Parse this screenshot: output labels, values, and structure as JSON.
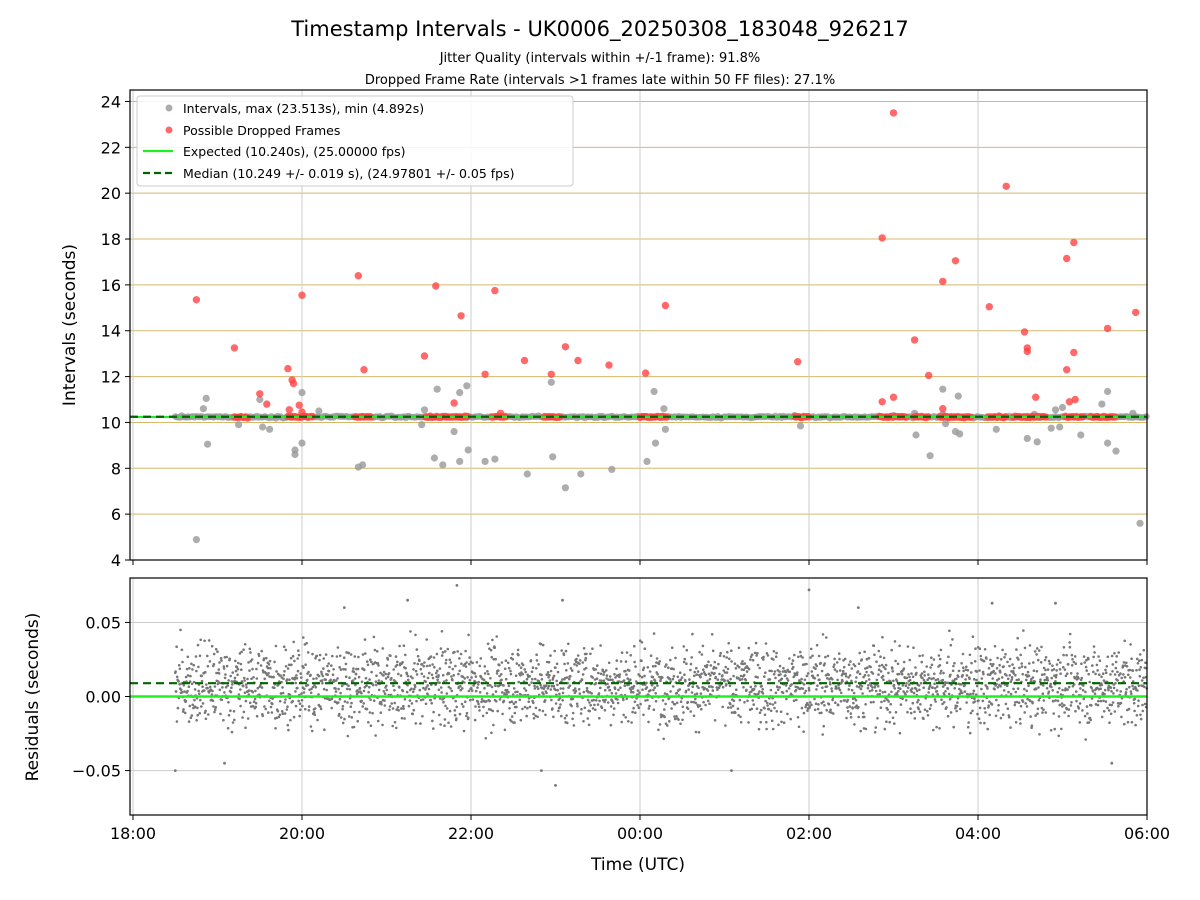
{
  "chart_data": {
    "type": "scatter",
    "title": "Timestamp Intervals - UK0006_20250308_183048_926217",
    "subtitle_1": "Jitter Quality (intervals within +/-1 frame): 91.8%",
    "subtitle_2": "Dropped Frame Rate (intervals >1 frames late within 50 FF files): 27.1%",
    "xlabel": "Time (UTC)",
    "x_ticks": [
      "18:00",
      "20:00",
      "22:00",
      "00:00",
      "02:00",
      "04:00",
      "06:00"
    ],
    "x_range_hours_utc": [
      "2025-03-08 18:00",
      "2025-03-09 06:00"
    ],
    "top_panel": {
      "ylabel": "Intervals (seconds)",
      "ylim": [
        4,
        24.5
      ],
      "y_ticks": [
        "4",
        "6",
        "8",
        "10",
        "12",
        "14",
        "16",
        "18",
        "20",
        "22",
        "24"
      ],
      "y_tick_values": [
        4,
        6,
        8,
        10,
        12,
        14,
        16,
        18,
        20,
        22,
        24
      ],
      "legend_position": "top-left",
      "legend": [
        "Intervals, max (23.513s), min (4.892s)",
        "Possible Dropped Frames",
        "Expected (10.240s), (25.00000 fps)",
        "Median (10.249 +/- 0.019 s), (24.97801 +/- 0.05 fps)"
      ],
      "expected_line": 10.24,
      "median_line": 10.249,
      "series": [
        {
          "name": "Intervals",
          "color": "#999999",
          "points": [
            [
              "2025-03-08 18:45",
              4.89
            ],
            [
              "2025-03-08 18:50",
              10.6
            ],
            [
              "2025-03-08 18:52",
              11.05
            ],
            [
              "2025-03-08 18:53",
              9.05
            ],
            [
              "2025-03-08 19:15",
              9.9
            ],
            [
              "2025-03-08 19:30",
              11.0
            ],
            [
              "2025-03-08 19:32",
              9.8
            ],
            [
              "2025-03-08 19:37",
              9.7
            ],
            [
              "2025-03-08 19:55",
              8.6
            ],
            [
              "2025-03-08 19:55",
              8.8
            ],
            [
              "2025-03-08 20:00",
              11.3
            ],
            [
              "2025-03-08 20:00",
              9.1
            ],
            [
              "2025-03-08 20:12",
              10.5
            ],
            [
              "2025-03-08 20:40",
              8.05
            ],
            [
              "2025-03-08 20:43",
              8.15
            ],
            [
              "2025-03-08 21:25",
              9.9
            ],
            [
              "2025-03-08 21:27",
              10.55
            ],
            [
              "2025-03-08 21:34",
              8.45
            ],
            [
              "2025-03-08 21:36",
              11.45
            ],
            [
              "2025-03-08 21:40",
              8.15
            ],
            [
              "2025-03-08 21:48",
              9.6
            ],
            [
              "2025-03-08 21:52",
              8.3
            ],
            [
              "2025-03-08 21:52",
              11.3
            ],
            [
              "2025-03-08 21:57",
              11.6
            ],
            [
              "2025-03-08 21:58",
              8.8
            ],
            [
              "2025-03-08 22:10",
              8.3
            ],
            [
              "2025-03-08 22:17",
              8.4
            ],
            [
              "2025-03-08 22:40",
              7.75
            ],
            [
              "2025-03-08 22:57",
              11.75
            ],
            [
              "2025-03-08 22:58",
              8.5
            ],
            [
              "2025-03-08 23:07",
              7.15
            ],
            [
              "2025-03-08 23:18",
              7.75
            ],
            [
              "2025-03-08 23:40",
              7.95
            ],
            [
              "2025-03-09 00:05",
              8.3
            ],
            [
              "2025-03-09 00:10",
              11.35
            ],
            [
              "2025-03-09 00:11",
              9.1
            ],
            [
              "2025-03-09 00:17",
              10.6
            ],
            [
              "2025-03-09 00:18",
              9.7
            ],
            [
              "2025-03-09 01:54",
              9.85
            ],
            [
              "2025-03-09 03:00",
              10.3
            ],
            [
              "2025-03-09 03:15",
              10.4
            ],
            [
              "2025-03-09 03:16",
              9.45
            ],
            [
              "2025-03-09 03:26",
              8.55
            ],
            [
              "2025-03-09 03:35",
              10.35
            ],
            [
              "2025-03-09 03:35",
              11.45
            ],
            [
              "2025-03-09 03:37",
              9.95
            ],
            [
              "2025-03-09 03:44",
              9.6
            ],
            [
              "2025-03-09 03:46",
              11.15
            ],
            [
              "2025-03-09 03:47",
              9.5
            ],
            [
              "2025-03-09 04:13",
              9.7
            ],
            [
              "2025-03-09 04:35",
              9.3
            ],
            [
              "2025-03-09 04:40",
              10.35
            ],
            [
              "2025-03-09 04:42",
              9.15
            ],
            [
              "2025-03-09 04:52",
              9.75
            ],
            [
              "2025-03-09 04:55",
              10.55
            ],
            [
              "2025-03-09 04:58",
              9.8
            ],
            [
              "2025-03-09 05:00",
              10.65
            ],
            [
              "2025-03-09 05:13",
              9.45
            ],
            [
              "2025-03-09 05:28",
              10.8
            ],
            [
              "2025-03-09 05:32",
              11.35
            ],
            [
              "2025-03-09 05:32",
              9.1
            ],
            [
              "2025-03-09 05:38",
              8.75
            ],
            [
              "2025-03-09 05:50",
              10.4
            ],
            [
              "2025-03-09 05:55",
              5.6
            ]
          ],
          "dense_band": {
            "value": 10.24,
            "x_from": "2025-03-08 18:30",
            "x_to": "2025-03-09 06:00"
          }
        },
        {
          "name": "Possible Dropped Frames",
          "color": "#ff4444",
          "points": [
            [
              "2025-03-08 18:45",
              15.35
            ],
            [
              "2025-03-08 19:12",
              13.25
            ],
            [
              "2025-03-08 19:30",
              11.25
            ],
            [
              "2025-03-08 19:35",
              10.8
            ],
            [
              "2025-03-08 19:50",
              12.35
            ],
            [
              "2025-03-08 19:53",
              11.85
            ],
            [
              "2025-03-08 19:54",
              11.7
            ],
            [
              "2025-03-08 19:51",
              10.55
            ],
            [
              "2025-03-08 19:58",
              10.75
            ],
            [
              "2025-03-08 20:00",
              15.55
            ],
            [
              "2025-03-08 20:00",
              10.45
            ],
            [
              "2025-03-08 20:40",
              16.4
            ],
            [
              "2025-03-08 20:44",
              12.3
            ],
            [
              "2025-03-08 21:27",
              12.9
            ],
            [
              "2025-03-08 21:35",
              15.95
            ],
            [
              "2025-03-08 21:48",
              10.85
            ],
            [
              "2025-03-08 21:53",
              14.65
            ],
            [
              "2025-03-08 22:10",
              12.1
            ],
            [
              "2025-03-08 22:17",
              15.75
            ],
            [
              "2025-03-08 22:21",
              10.4
            ],
            [
              "2025-03-08 22:38",
              12.7
            ],
            [
              "2025-03-08 22:57",
              12.1
            ],
            [
              "2025-03-08 23:07",
              13.3
            ],
            [
              "2025-03-08 23:16",
              12.7
            ],
            [
              "2025-03-08 23:38",
              12.5
            ],
            [
              "2025-03-09 00:04",
              12.15
            ],
            [
              "2025-03-09 00:18",
              15.1
            ],
            [
              "2025-03-09 01:52",
              12.65
            ],
            [
              "2025-03-09 02:52",
              18.05
            ],
            [
              "2025-03-09 02:52",
              10.9
            ],
            [
              "2025-03-09 03:00",
              23.5
            ],
            [
              "2025-03-09 03:00",
              11.1
            ],
            [
              "2025-03-09 03:15",
              13.6
            ],
            [
              "2025-03-09 03:25",
              12.05
            ],
            [
              "2025-03-09 03:35",
              16.15
            ],
            [
              "2025-03-09 03:35",
              10.6
            ],
            [
              "2025-03-09 03:44",
              17.05
            ],
            [
              "2025-03-09 04:08",
              15.05
            ],
            [
              "2025-03-09 04:20",
              20.3
            ],
            [
              "2025-03-09 04:33",
              13.95
            ],
            [
              "2025-03-09 04:35",
              13.25
            ],
            [
              "2025-03-09 04:35",
              13.1
            ],
            [
              "2025-03-09 04:41",
              11.1
            ],
            [
              "2025-03-09 05:03",
              17.15
            ],
            [
              "2025-03-09 05:03",
              12.3
            ],
            [
              "2025-03-09 05:05",
              10.9
            ],
            [
              "2025-03-09 05:08",
              13.05
            ],
            [
              "2025-03-09 05:08",
              17.85
            ],
            [
              "2025-03-09 05:09",
              11.0
            ],
            [
              "2025-03-09 05:32",
              14.1
            ],
            [
              "2025-03-09 05:52",
              14.8
            ]
          ],
          "clusters_at_expected": [
            [
              "2025-03-08 19:12",
              "2025-03-08 19:22"
            ],
            [
              "2025-03-08 19:50",
              "2025-03-08 20:08"
            ],
            [
              "2025-03-08 20:38",
              "2025-03-08 20:50"
            ],
            [
              "2025-03-08 21:28",
              "2025-03-08 21:48"
            ],
            [
              "2025-03-08 21:48",
              "2025-03-08 21:58"
            ],
            [
              "2025-03-08 22:15",
              "2025-03-08 22:25"
            ],
            [
              "2025-03-08 22:52",
              "2025-03-08 23:03"
            ],
            [
              "2025-03-09 00:00",
              "2025-03-09 00:20"
            ],
            [
              "2025-03-09 01:50",
              "2025-03-09 02:00"
            ],
            [
              "2025-03-09 02:50",
              "2025-03-09 03:10"
            ],
            [
              "2025-03-09 03:15",
              "2025-03-09 03:25"
            ],
            [
              "2025-03-09 03:33",
              "2025-03-09 03:55"
            ],
            [
              "2025-03-09 04:07",
              "2025-03-09 04:20"
            ],
            [
              "2025-03-09 04:25",
              "2025-03-09 04:36"
            ],
            [
              "2025-03-09 04:37",
              "2025-03-09 04:48"
            ],
            [
              "2025-03-09 05:02",
              "2025-03-09 05:16"
            ],
            [
              "2025-03-09 05:20",
              "2025-03-09 05:38"
            ]
          ]
        }
      ],
      "colors": {
        "expected": "#22ee22",
        "median": "#006400",
        "gridline": "#d4b96a"
      }
    },
    "bottom_panel": {
      "ylabel": "Residuals (seconds)",
      "ylim": [
        -0.08,
        0.08
      ],
      "y_ticks": [
        "0.05",
        "0.00",
        "−0.05"
      ],
      "y_tick_values": [
        0.05,
        0.0,
        -0.05
      ],
      "expected_line": 0.0,
      "median_line": 0.009,
      "residual_band": {
        "center": 0.008,
        "spread": 0.02,
        "x_from": "2025-03-08 18:30",
        "x_to": "2025-03-09 06:00"
      },
      "outliers": [
        [
          "2025-03-08 18:30",
          -0.05
        ],
        [
          "2025-03-08 19:05",
          -0.045
        ],
        [
          "2025-03-08 20:30",
          0.06
        ],
        [
          "2025-03-08 21:15",
          0.065
        ],
        [
          "2025-03-08 21:50",
          0.075
        ],
        [
          "2025-03-08 22:50",
          -0.05
        ],
        [
          "2025-03-08 23:00",
          -0.06
        ],
        [
          "2025-03-08 23:05",
          0.065
        ],
        [
          "2025-03-09 01:05",
          -0.05
        ],
        [
          "2025-03-09 02:00",
          0.072
        ],
        [
          "2025-03-09 02:35",
          0.06
        ],
        [
          "2025-03-09 04:10",
          0.063
        ],
        [
          "2025-03-09 04:55",
          0.063
        ],
        [
          "2025-03-09 05:35",
          -0.045
        ]
      ],
      "colors": {
        "points": "#777777",
        "expected": "#22ee22",
        "median": "#006400",
        "gridline": "#cccccc"
      }
    }
  }
}
